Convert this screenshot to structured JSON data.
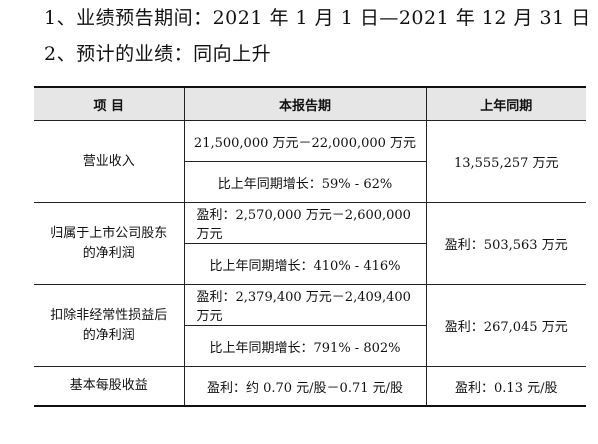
{
  "heading": {
    "line1": "1、业绩预告期间：2021 年 1 月 1 日—2021 年 12 月 31 日",
    "line2": "2、预计的业绩：同向上升"
  },
  "table": {
    "headers": [
      "项 目",
      "本报告期",
      "上年同期"
    ],
    "rows": [
      {
        "item": "营业收入",
        "current_range": "21,500,000 万元－22,000,000 万元",
        "current_growth": "比上年同期增长：59% - 62%",
        "previous": "13,555,257 万元"
      },
      {
        "item_line1": "归属于上市公司股东",
        "item_line2": "的净利润",
        "current_range": "盈利：2,570,000 万元－2,600,000 万元",
        "current_growth": "比上年同期增长：410% - 416%",
        "previous": "盈利：503,563 万元"
      },
      {
        "item_line1": "扣除非经常性损益后",
        "item_line2": "的净利润",
        "current_range": "盈利：2,379,400 万元－2,409,400 万元",
        "current_growth": "比上年同期增长：791% - 802%",
        "previous": "盈利：267,045 万元"
      },
      {
        "item": "基本每股收益",
        "current": "盈利：约 0.70 元/股－0.71 元/股",
        "previous": "盈利：0.13 元/股"
      }
    ]
  }
}
